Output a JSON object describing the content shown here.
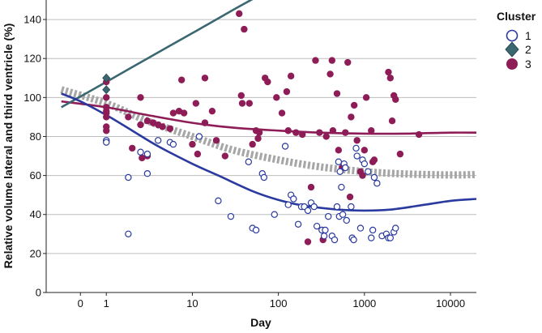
{
  "chart_data": {
    "type": "scatter",
    "xscale": "log",
    "xlabel": "Day",
    "ylabel": "Relative volume lateral and third ventricle (%)",
    "ylim": [
      0,
      150
    ],
    "yticks": [
      0,
      20,
      40,
      60,
      80,
      100,
      120,
      140
    ],
    "xticks": [
      {
        "value": 0.5,
        "label": "0"
      },
      {
        "value": 1,
        "label": "1"
      },
      {
        "value": 10,
        "label": "10"
      },
      {
        "value": 100,
        "label": "100"
      },
      {
        "value": 1000,
        "label": "1000"
      },
      {
        "value": 10000,
        "label": "10000"
      }
    ],
    "grid": "horizontal",
    "legend": {
      "title": "Cluster",
      "position": "right"
    },
    "colors": {
      "cluster1": "#2a3a9e",
      "cluster2": "#3a6770",
      "cluster3": "#8e1d57",
      "overall": "#a6a6a6"
    },
    "series": [
      {
        "name": "1",
        "marker": "open-circle",
        "points": [
          [
            1,
            78
          ],
          [
            1,
            77
          ],
          [
            1.8,
            59
          ],
          [
            1.8,
            30
          ],
          [
            2.5,
            72
          ],
          [
            3,
            61
          ],
          [
            3,
            71
          ],
          [
            4,
            78
          ],
          [
            5.5,
            77
          ],
          [
            6,
            76
          ],
          [
            12,
            80
          ],
          [
            20,
            47
          ],
          [
            28,
            39
          ],
          [
            45,
            67
          ],
          [
            50,
            33
          ],
          [
            55,
            32
          ],
          [
            65,
            61
          ],
          [
            68,
            59
          ],
          [
            90,
            40
          ],
          [
            120,
            75
          ],
          [
            130,
            45
          ],
          [
            140,
            50
          ],
          [
            150,
            48
          ],
          [
            170,
            35
          ],
          [
            185,
            44
          ],
          [
            200,
            44
          ],
          [
            220,
            42
          ],
          [
            240,
            46
          ],
          [
            260,
            44
          ],
          [
            280,
            34
          ],
          [
            320,
            32
          ],
          [
            340,
            29
          ],
          [
            350,
            32
          ],
          [
            380,
            39
          ],
          [
            420,
            29
          ],
          [
            450,
            27
          ],
          [
            480,
            44
          ],
          [
            500,
            67
          ],
          [
            510,
            39
          ],
          [
            520,
            62
          ],
          [
            540,
            54
          ],
          [
            560,
            40
          ],
          [
            580,
            66
          ],
          [
            600,
            64
          ],
          [
            620,
            37
          ],
          [
            700,
            44
          ],
          [
            720,
            28
          ],
          [
            750,
            27
          ],
          [
            800,
            74
          ],
          [
            820,
            70
          ],
          [
            900,
            33
          ],
          [
            950,
            68
          ],
          [
            1000,
            66
          ],
          [
            1100,
            62
          ],
          [
            1200,
            28
          ],
          [
            1250,
            32
          ],
          [
            1300,
            59
          ],
          [
            1400,
            56
          ],
          [
            1600,
            29
          ],
          [
            1800,
            30
          ],
          [
            1900,
            28
          ],
          [
            2000,
            28
          ],
          [
            2200,
            31
          ],
          [
            2300,
            33
          ]
        ]
      },
      {
        "name": "2",
        "marker": "diamond",
        "points": [
          [
            1,
            110
          ],
          [
            1,
            104
          ]
        ]
      },
      {
        "name": "3",
        "marker": "filled-circle",
        "points": [
          [
            1,
            108
          ],
          [
            1,
            100
          ],
          [
            1,
            95
          ],
          [
            1,
            93
          ],
          [
            1,
            92
          ],
          [
            1,
            90
          ],
          [
            1,
            85
          ],
          [
            1,
            83
          ],
          [
            1.8,
            90
          ],
          [
            2,
            74
          ],
          [
            2.5,
            100
          ],
          [
            2.5,
            86
          ],
          [
            2.6,
            69
          ],
          [
            3,
            88
          ],
          [
            3,
            70
          ],
          [
            3.5,
            87
          ],
          [
            4,
            86
          ],
          [
            4.5,
            85
          ],
          [
            5.5,
            84
          ],
          [
            6,
            92
          ],
          [
            7,
            93
          ],
          [
            7.5,
            109
          ],
          [
            8,
            92
          ],
          [
            10,
            76
          ],
          [
            11,
            97
          ],
          [
            11.5,
            71
          ],
          [
            14,
            110
          ],
          [
            14,
            87
          ],
          [
            17,
            93
          ],
          [
            19,
            78
          ],
          [
            24,
            70
          ],
          [
            35,
            143
          ],
          [
            37,
            101
          ],
          [
            38,
            97
          ],
          [
            40,
            135
          ],
          [
            46,
            97
          ],
          [
            50,
            76
          ],
          [
            55,
            83
          ],
          [
            58,
            79
          ],
          [
            60,
            82
          ],
          [
            70,
            110
          ],
          [
            75,
            108
          ],
          [
            95,
            100
          ],
          [
            110,
            92
          ],
          [
            125,
            103
          ],
          [
            130,
            83
          ],
          [
            140,
            111
          ],
          [
            160,
            82
          ],
          [
            190,
            81
          ],
          [
            220,
            26
          ],
          [
            240,
            54
          ],
          [
            270,
            119
          ],
          [
            300,
            82
          ],
          [
            330,
            27
          ],
          [
            360,
            80
          ],
          [
            400,
            112
          ],
          [
            420,
            119
          ],
          [
            430,
            83
          ],
          [
            480,
            102
          ],
          [
            500,
            73
          ],
          [
            550,
            64
          ],
          [
            600,
            82
          ],
          [
            640,
            118
          ],
          [
            680,
            49
          ],
          [
            700,
            90
          ],
          [
            760,
            96
          ],
          [
            820,
            78
          ],
          [
            900,
            62
          ],
          [
            950,
            60
          ],
          [
            1000,
            73
          ],
          [
            1050,
            100
          ],
          [
            1200,
            83
          ],
          [
            1250,
            67
          ],
          [
            1300,
            68
          ],
          [
            1900,
            113
          ],
          [
            2000,
            110
          ],
          [
            2100,
            88
          ],
          [
            2200,
            101
          ],
          [
            2300,
            99
          ],
          [
            2600,
            71
          ],
          [
            4300,
            81
          ]
        ]
      }
    ],
    "fit_lines": [
      {
        "name": "Cluster 1 fit",
        "points": [
          [
            0.3,
            102
          ],
          [
            0.5,
            98
          ],
          [
            1,
            91
          ],
          [
            2,
            83
          ],
          [
            4,
            75
          ],
          [
            10,
            66
          ],
          [
            20,
            60
          ],
          [
            50,
            52
          ],
          [
            100,
            47.5
          ],
          [
            200,
            44.5
          ],
          [
            500,
            42.5
          ],
          [
            1000,
            42
          ],
          [
            2000,
            42.5
          ],
          [
            5000,
            45
          ],
          [
            10000,
            47
          ],
          [
            20000,
            48
          ]
        ]
      },
      {
        "name": "Cluster 2 fit",
        "points": [
          [
            0.3,
            95
          ],
          [
            1,
            108
          ],
          [
            3,
            120
          ],
          [
            10,
            133
          ],
          [
            30,
            145
          ],
          [
            70,
            154
          ]
        ]
      },
      {
        "name": "Cluster 3 fit",
        "points": [
          [
            0.3,
            98
          ],
          [
            1,
            95
          ],
          [
            3,
            91
          ],
          [
            10,
            87
          ],
          [
            30,
            84.5
          ],
          [
            100,
            83
          ],
          [
            300,
            82
          ],
          [
            1000,
            81.5
          ],
          [
            3000,
            81.5
          ],
          [
            10000,
            82
          ],
          [
            20000,
            82
          ]
        ]
      },
      {
        "name": "Overall fit",
        "points": [
          [
            0.3,
            104
          ],
          [
            1,
            97
          ],
          [
            3,
            88
          ],
          [
            10,
            80
          ],
          [
            30,
            73
          ],
          [
            100,
            68
          ],
          [
            300,
            64.5
          ],
          [
            1000,
            62
          ],
          [
            3000,
            60.8
          ],
          [
            10000,
            60.3
          ],
          [
            20000,
            60.5
          ]
        ]
      }
    ]
  }
}
